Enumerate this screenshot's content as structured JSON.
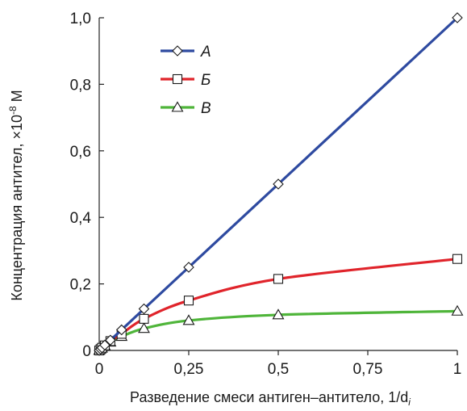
{
  "chart_data": {
    "type": "line",
    "title": "",
    "xlabel": "Разведение смеси антиген–антитело, 1/d",
    "xlabel_sub": "i",
    "ylabel_prefix": "Концентрация антител, ×10",
    "ylabel_exp": "-8",
    "ylabel_unit": " М",
    "xlim": [
      0,
      1
    ],
    "ylim": [
      0,
      1
    ],
    "x_ticks": [
      0,
      0.25,
      0.5,
      0.75,
      1
    ],
    "x_tick_labels": [
      "0",
      "0,25",
      "0,5",
      "0,75",
      "1"
    ],
    "y_ticks": [
      0,
      0.2,
      0.4,
      0.6,
      0.8,
      1.0
    ],
    "y_tick_labels": [
      "0",
      "0,2",
      "0,4",
      "0,6",
      "0,8",
      "1,0"
    ],
    "grid": false,
    "legend_position": "top-left",
    "series": [
      {
        "name": "А",
        "color": "#2e4aa0",
        "marker": "diamond",
        "x": [
          0,
          0.0039,
          0.0078,
          0.0156,
          0.03125,
          0.0625,
          0.125,
          0.25,
          0.5,
          1
        ],
        "y": [
          0,
          0.004,
          0.008,
          0.016,
          0.031,
          0.062,
          0.125,
          0.25,
          0.5,
          1.0
        ]
      },
      {
        "name": "Б",
        "color": "#e0242b",
        "marker": "square",
        "x": [
          0,
          0.0039,
          0.0078,
          0.0156,
          0.03125,
          0.0625,
          0.125,
          0.25,
          0.5,
          1
        ],
        "y": [
          0,
          0.004,
          0.008,
          0.015,
          0.028,
          0.05,
          0.095,
          0.15,
          0.215,
          0.275
        ]
      },
      {
        "name": "В",
        "color": "#4fb53a",
        "marker": "triangle",
        "x": [
          0,
          0.0039,
          0.0078,
          0.0156,
          0.03125,
          0.0625,
          0.125,
          0.25,
          0.5,
          1
        ],
        "y": [
          0,
          0.004,
          0.007,
          0.014,
          0.025,
          0.042,
          0.066,
          0.09,
          0.107,
          0.118
        ]
      }
    ]
  }
}
